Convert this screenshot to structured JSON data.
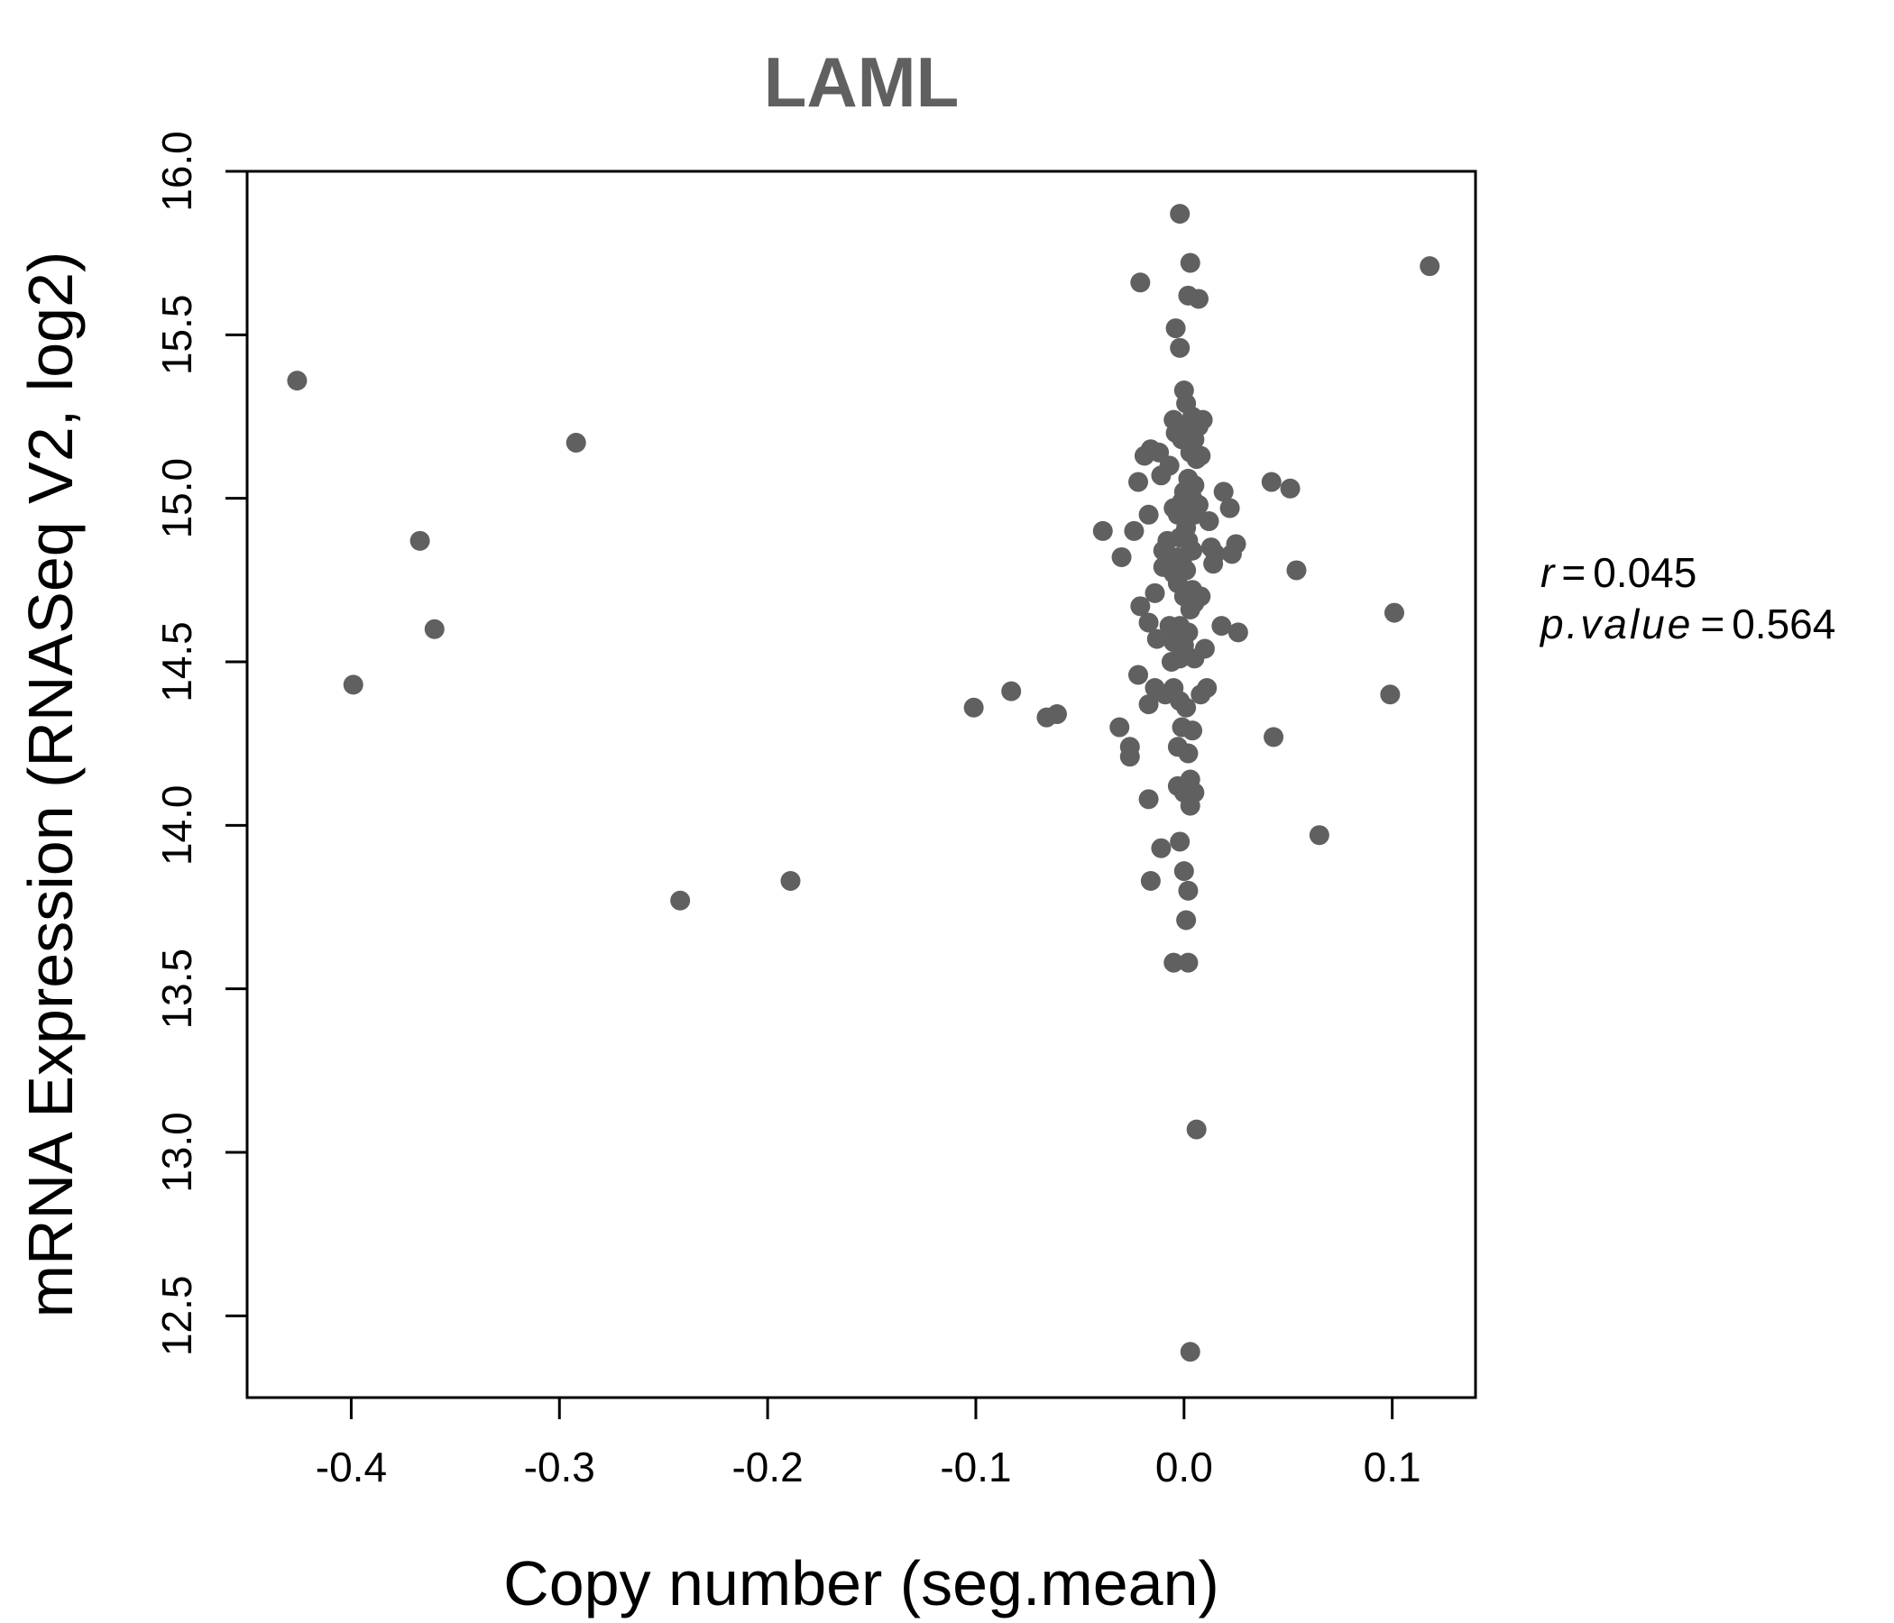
{
  "chart_data": {
    "type": "scatter",
    "title": "LAML",
    "xlabel": "Copy number (seg.mean)",
    "ylabel": "mRNA Expression (RNASeq V2, log2)",
    "xlim": [
      -0.45,
      0.14
    ],
    "ylim": [
      12.25,
      16.0
    ],
    "xticks": [
      -0.4,
      -0.3,
      -0.2,
      -0.1,
      0.0,
      0.1
    ],
    "xtick_labels": [
      "-0.4",
      "-0.3",
      "-0.2",
      "-0.1",
      "0.0",
      "0.1"
    ],
    "yticks": [
      12.5,
      13.0,
      13.5,
      14.0,
      14.5,
      15.0,
      15.5,
      16.0
    ],
    "ytick_labels": [
      "12.5",
      "13.0",
      "13.5",
      "14.0",
      "14.5",
      "15.0",
      "15.5",
      "16.0"
    ],
    "grid": false,
    "colors": {
      "point": "#606060",
      "title": "#606060",
      "axis": "#000000"
    },
    "stats": {
      "r_label": "r",
      "r_value": "0.045",
      "p_label": "p.value",
      "p_value": "0.564"
    },
    "points": [
      {
        "x": -0.426,
        "y": 15.36
      },
      {
        "x": -0.399,
        "y": 14.43
      },
      {
        "x": -0.367,
        "y": 14.87
      },
      {
        "x": -0.36,
        "y": 14.6
      },
      {
        "x": -0.292,
        "y": 15.17
      },
      {
        "x": -0.242,
        "y": 13.77
      },
      {
        "x": -0.189,
        "y": 13.83
      },
      {
        "x": -0.101,
        "y": 14.36
      },
      {
        "x": -0.083,
        "y": 14.41
      },
      {
        "x": -0.066,
        "y": 14.33
      },
      {
        "x": -0.061,
        "y": 14.34
      },
      {
        "x": -0.039,
        "y": 14.9
      },
      {
        "x": -0.03,
        "y": 14.82
      },
      {
        "x": -0.031,
        "y": 14.3
      },
      {
        "x": -0.026,
        "y": 14.24
      },
      {
        "x": -0.026,
        "y": 14.21
      },
      {
        "x": -0.024,
        "y": 14.9
      },
      {
        "x": -0.022,
        "y": 15.05
      },
      {
        "x": -0.021,
        "y": 15.66
      },
      {
        "x": -0.021,
        "y": 14.67
      },
      {
        "x": -0.022,
        "y": 14.46
      },
      {
        "x": -0.019,
        "y": 15.13
      },
      {
        "x": -0.017,
        "y": 14.62
      },
      {
        "x": -0.016,
        "y": 15.15
      },
      {
        "x": -0.017,
        "y": 14.95
      },
      {
        "x": -0.017,
        "y": 14.37
      },
      {
        "x": -0.017,
        "y": 14.08
      },
      {
        "x": -0.016,
        "y": 13.83
      },
      {
        "x": -0.014,
        "y": 14.42
      },
      {
        "x": -0.014,
        "y": 14.71
      },
      {
        "x": -0.013,
        "y": 14.57
      },
      {
        "x": -0.012,
        "y": 15.14
      },
      {
        "x": -0.011,
        "y": 15.07
      },
      {
        "x": -0.011,
        "y": 13.93
      },
      {
        "x": -0.01,
        "y": 14.84
      },
      {
        "x": -0.01,
        "y": 14.79
      },
      {
        "x": -0.009,
        "y": 14.4
      },
      {
        "x": -0.008,
        "y": 14.87
      },
      {
        "x": -0.007,
        "y": 15.1
      },
      {
        "x": -0.007,
        "y": 14.61
      },
      {
        "x": -0.006,
        "y": 14.5
      },
      {
        "x": -0.005,
        "y": 15.24
      },
      {
        "x": -0.005,
        "y": 14.97
      },
      {
        "x": -0.005,
        "y": 14.77
      },
      {
        "x": -0.005,
        "y": 14.56
      },
      {
        "x": -0.005,
        "y": 14.42
      },
      {
        "x": -0.005,
        "y": 13.58
      },
      {
        "x": -0.004,
        "y": 15.52
      },
      {
        "x": -0.004,
        "y": 15.2
      },
      {
        "x": -0.003,
        "y": 14.95
      },
      {
        "x": -0.003,
        "y": 14.82
      },
      {
        "x": -0.003,
        "y": 14.74
      },
      {
        "x": -0.003,
        "y": 14.24
      },
      {
        "x": -0.003,
        "y": 14.12
      },
      {
        "x": -0.002,
        "y": 15.87
      },
      {
        "x": -0.002,
        "y": 15.46
      },
      {
        "x": -0.002,
        "y": 14.88
      },
      {
        "x": -0.002,
        "y": 14.61
      },
      {
        "x": -0.002,
        "y": 14.51
      },
      {
        "x": -0.002,
        "y": 14.38
      },
      {
        "x": -0.002,
        "y": 13.95
      },
      {
        "x": -0.001,
        "y": 15.18
      },
      {
        "x": -0.001,
        "y": 14.99
      },
      {
        "x": -0.001,
        "y": 14.81
      },
      {
        "x": -0.001,
        "y": 14.3
      },
      {
        "x": 0.0,
        "y": 15.33
      },
      {
        "x": 0.0,
        "y": 15.02
      },
      {
        "x": 0.0,
        "y": 14.7
      },
      {
        "x": 0.0,
        "y": 14.55
      },
      {
        "x": 0.0,
        "y": 14.1
      },
      {
        "x": 0.0,
        "y": 13.86
      },
      {
        "x": 0.001,
        "y": 15.29
      },
      {
        "x": 0.001,
        "y": 15.21
      },
      {
        "x": 0.001,
        "y": 14.91
      },
      {
        "x": 0.001,
        "y": 14.78
      },
      {
        "x": 0.001,
        "y": 14.36
      },
      {
        "x": 0.001,
        "y": 13.71
      },
      {
        "x": 0.002,
        "y": 15.62
      },
      {
        "x": 0.002,
        "y": 15.06
      },
      {
        "x": 0.002,
        "y": 14.87
      },
      {
        "x": 0.002,
        "y": 14.59
      },
      {
        "x": 0.002,
        "y": 14.22
      },
      {
        "x": 0.002,
        "y": 13.58
      },
      {
        "x": 0.002,
        "y": 13.8
      },
      {
        "x": 0.003,
        "y": 15.72
      },
      {
        "x": 0.003,
        "y": 15.14
      },
      {
        "x": 0.003,
        "y": 14.98
      },
      {
        "x": 0.003,
        "y": 14.66
      },
      {
        "x": 0.003,
        "y": 14.14
      },
      {
        "x": 0.003,
        "y": 14.06
      },
      {
        "x": 0.003,
        "y": 12.39
      },
      {
        "x": 0.004,
        "y": 15.25
      },
      {
        "x": 0.004,
        "y": 15.0
      },
      {
        "x": 0.004,
        "y": 14.84
      },
      {
        "x": 0.004,
        "y": 14.72
      },
      {
        "x": 0.004,
        "y": 14.29
      },
      {
        "x": 0.005,
        "y": 15.18
      },
      {
        "x": 0.005,
        "y": 15.04
      },
      {
        "x": 0.005,
        "y": 14.95
      },
      {
        "x": 0.005,
        "y": 14.68
      },
      {
        "x": 0.005,
        "y": 14.51
      },
      {
        "x": 0.005,
        "y": 14.1
      },
      {
        "x": 0.006,
        "y": 15.12
      },
      {
        "x": 0.006,
        "y": 13.07
      },
      {
        "x": 0.007,
        "y": 15.61
      },
      {
        "x": 0.007,
        "y": 15.22
      },
      {
        "x": 0.007,
        "y": 14.98
      },
      {
        "x": 0.008,
        "y": 14.7
      },
      {
        "x": 0.008,
        "y": 15.13
      },
      {
        "x": 0.008,
        "y": 14.4
      },
      {
        "x": 0.009,
        "y": 15.24
      },
      {
        "x": 0.01,
        "y": 14.54
      },
      {
        "x": 0.011,
        "y": 14.42
      },
      {
        "x": 0.012,
        "y": 14.93
      },
      {
        "x": 0.013,
        "y": 14.85
      },
      {
        "x": 0.014,
        "y": 14.8
      },
      {
        "x": 0.015,
        "y": 14.83
      },
      {
        "x": 0.018,
        "y": 14.61
      },
      {
        "x": 0.019,
        "y": 15.02
      },
      {
        "x": 0.022,
        "y": 14.97
      },
      {
        "x": 0.023,
        "y": 14.83
      },
      {
        "x": 0.025,
        "y": 14.86
      },
      {
        "x": 0.026,
        "y": 14.59
      },
      {
        "x": 0.042,
        "y": 15.05
      },
      {
        "x": 0.043,
        "y": 14.27
      },
      {
        "x": 0.051,
        "y": 15.03
      },
      {
        "x": 0.054,
        "y": 14.78
      },
      {
        "x": 0.065,
        "y": 13.97
      },
      {
        "x": 0.099,
        "y": 14.4
      },
      {
        "x": 0.101,
        "y": 14.65
      },
      {
        "x": 0.118,
        "y": 15.71
      }
    ]
  }
}
